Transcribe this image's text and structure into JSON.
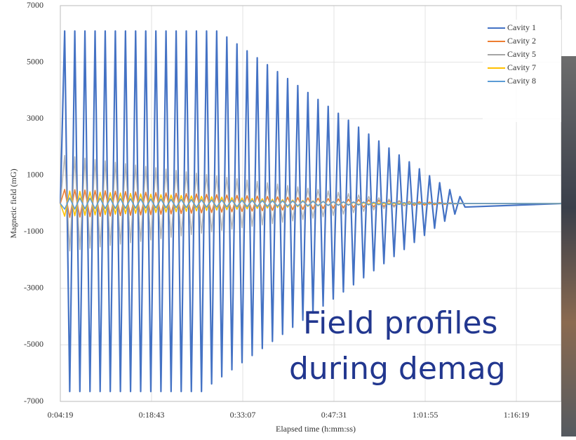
{
  "chart_data": {
    "type": "line",
    "y_label": "Magnetic field (mG)",
    "x_label": "Elapsed time (h:mm:ss)",
    "annotation": [
      "Field profiles",
      "during demag"
    ],
    "xlim": [
      259,
      5004
    ],
    "xticks": [
      {
        "value": 259,
        "label": "0:04:19"
      },
      {
        "value": 1123,
        "label": "0:18:43"
      },
      {
        "value": 1987,
        "label": "0:33:07"
      },
      {
        "value": 2851,
        "label": "0:47:31"
      },
      {
        "value": 3715,
        "label": "1:01:55"
      },
      {
        "value": 4579,
        "label": "1:16:19"
      }
    ],
    "ylim": [
      -7000,
      7000
    ],
    "yticks": [
      -7000,
      -5000,
      -3000,
      -1000,
      1000,
      3000,
      5000,
      7000
    ],
    "grid": true,
    "legend": "upper right",
    "x": [
      259,
      300,
      348,
      396,
      444,
      492,
      540,
      588,
      636,
      684,
      732,
      780,
      828,
      876,
      924,
      972,
      1020,
      1068,
      1116,
      1164,
      1212,
      1260,
      1308,
      1356,
      1404,
      1452,
      1500,
      1548,
      1596,
      1644,
      1692,
      1740,
      1788,
      1836,
      1884,
      1932,
      1980,
      2028,
      2076,
      2124,
      2172,
      2220,
      2268,
      2316,
      2364,
      2412,
      2460,
      2508,
      2556,
      2604,
      2652,
      2700,
      2748,
      2796,
      2844,
      2892,
      2940,
      2988,
      3036,
      3084,
      3132,
      3180,
      3228,
      3276,
      3324,
      3372,
      3420,
      3468,
      3516,
      3564,
      3612,
      3660,
      3708,
      3756,
      3804,
      3852,
      3900,
      3948,
      3996,
      4044,
      4092,
      5004
    ],
    "series": [
      {
        "name": "Cavity 1",
        "color": "#4472c4",
        "values": [
          0,
          6100,
          -6650,
          6100,
          -6650,
          6100,
          -6650,
          6100,
          -6650,
          6100,
          -6650,
          6100,
          -6650,
          6100,
          -6650,
          6100,
          -6650,
          6100,
          -6650,
          6100,
          -6650,
          6100,
          -6650,
          6100,
          -6650,
          6100,
          -6650,
          6100,
          -6650,
          6100,
          -6379,
          6100,
          -6129,
          5890,
          -5879,
          5645,
          -5629,
          5400,
          -5378,
          5154,
          -5128,
          4909,
          -4878,
          4663,
          -4628,
          4418,
          -4378,
          4172,
          -4128,
          3927,
          -3877,
          3681,
          -3627,
          3436,
          -3377,
          3191,
          -3127,
          2945,
          -2877,
          2700,
          -2627,
          2454,
          -2376,
          2209,
          -2126,
          1963,
          -1876,
          1718,
          -1626,
          1473,
          -1376,
          1227,
          -1126,
          982,
          -876,
          736,
          -625,
          491,
          -375,
          245,
          -125,
          0
        ]
      },
      {
        "name": "Cavity 2",
        "color": "#ed7d31",
        "values": [
          0,
          500,
          -494,
          488,
          -481,
          475,
          -469,
          463,
          -456,
          450,
          -444,
          438,
          -431,
          425,
          -419,
          413,
          -406,
          400,
          -394,
          388,
          -381,
          375,
          -369,
          363,
          -356,
          350,
          -344,
          338,
          -331,
          325,
          -319,
          313,
          -306,
          300,
          -294,
          288,
          -281,
          275,
          -269,
          263,
          -256,
          250,
          -244,
          238,
          -231,
          225,
          -219,
          213,
          -206,
          200,
          -194,
          188,
          -181,
          175,
          -169,
          163,
          -156,
          150,
          -144,
          138,
          -131,
          125,
          -119,
          113,
          -106,
          100,
          -94,
          88,
          -81,
          75,
          -69,
          63,
          -56,
          50,
          -44,
          38,
          -31,
          25,
          -19,
          13,
          -6,
          0
        ]
      },
      {
        "name": "Cavity 5",
        "color": "#a5a5a5",
        "values": [
          0,
          1700,
          -1676,
          1652,
          -1628,
          1603,
          -1579,
          1555,
          -1531,
          1507,
          -1483,
          1459,
          -1435,
          1410,
          -1386,
          1362,
          -1338,
          1314,
          -1290,
          1266,
          -1242,
          1217,
          -1193,
          1169,
          -1145,
          1121,
          -1097,
          1073,
          -1049,
          1024,
          -1000,
          976,
          -952,
          928,
          -904,
          880,
          -856,
          831,
          -807,
          783,
          -759,
          735,
          -711,
          687,
          -662,
          638,
          -614,
          590,
          -566,
          542,
          -518,
          494,
          -469,
          445,
          -421,
          397,
          -373,
          349,
          -325,
          300,
          -276,
          252,
          -228,
          204,
          -180,
          156,
          -132,
          107,
          -83,
          59,
          -35,
          11,
          0,
          0,
          0,
          0,
          0,
          0,
          0,
          0,
          0,
          0
        ]
      },
      {
        "name": "Cavity 7",
        "color": "#ffc000",
        "values": [
          0,
          -450,
          443,
          -435,
          428,
          -421,
          414,
          -406,
          399,
          -392,
          385,
          -377,
          370,
          -363,
          356,
          -348,
          341,
          -334,
          327,
          -319,
          312,
          -305,
          298,
          -290,
          283,
          -276,
          269,
          -261,
          254,
          -247,
          239,
          -232,
          225,
          -218,
          210,
          -203,
          196,
          -189,
          181,
          -174,
          167,
          -160,
          152,
          -145,
          138,
          -131,
          123,
          -116,
          109,
          -102,
          94,
          -87,
          80,
          -73,
          65,
          -58,
          51,
          -44,
          36,
          -29,
          22,
          -15,
          7,
          0,
          0,
          0,
          0,
          0,
          0,
          0,
          0,
          0,
          0,
          0,
          0,
          0,
          0,
          0,
          0,
          0,
          0,
          0
        ]
      },
      {
        "name": "Cavity 8",
        "color": "#5b9bd5",
        "values": [
          0,
          -200,
          198,
          -195,
          193,
          -190,
          188,
          -185,
          183,
          -180,
          178,
          -175,
          173,
          -170,
          168,
          -165,
          163,
          -160,
          158,
          -155,
          153,
          -150,
          148,
          -145,
          143,
          -140,
          138,
          -135,
          133,
          -130,
          128,
          -125,
          123,
          -120,
          118,
          -115,
          113,
          -110,
          108,
          -105,
          103,
          -100,
          98,
          -95,
          93,
          -90,
          88,
          -85,
          83,
          -80,
          78,
          -75,
          73,
          -70,
          68,
          -65,
          63,
          -60,
          58,
          -55,
          53,
          -50,
          48,
          -45,
          43,
          -40,
          38,
          -35,
          33,
          -30,
          28,
          -25,
          23,
          -20,
          18,
          -15,
          13,
          -10,
          8,
          -5,
          3,
          0
        ]
      }
    ]
  }
}
